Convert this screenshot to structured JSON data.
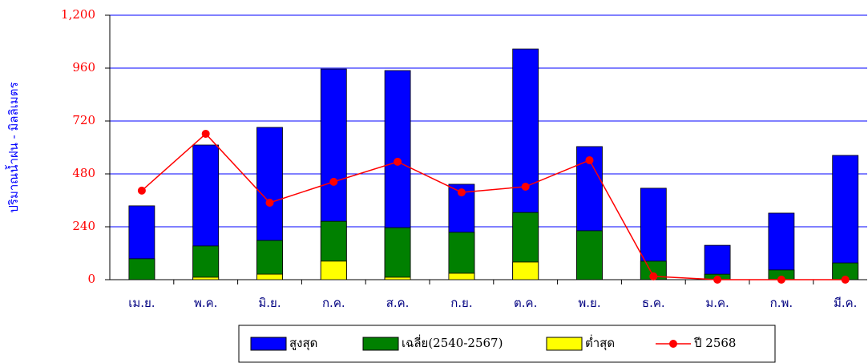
{
  "chart_data": {
    "type": "bar",
    "ylabel": "ปริมาณน้ำฝน - มิลลิเมตร",
    "categories": [
      "เม.ย.",
      "พ.ค.",
      "มิ.ย.",
      "ก.ค.",
      "ส.ค.",
      "ก.ย.",
      "ต.ค.",
      "พ.ย.",
      "ธ.ค.",
      "ม.ค.",
      "ก.พ.",
      "มี.ค."
    ],
    "series": [
      {
        "name": "สูงสุด",
        "color": "#0000ff",
        "type": "bar",
        "values": [
          335,
          611,
          691,
          956,
          949,
          433,
          1047,
          604,
          415,
          156,
          302,
          564
        ]
      },
      {
        "name": "เฉลี่ย(2540-2567)",
        "color": "#008000",
        "type": "bar",
        "values": [
          95,
          153,
          178,
          265,
          236,
          215,
          305,
          222,
          84,
          25,
          44,
          76
        ]
      },
      {
        "name": "ต่ำสุด",
        "color": "#ffff00",
        "type": "bar",
        "values": [
          0,
          11,
          25,
          84,
          11,
          29,
          80,
          0,
          0,
          0,
          0,
          0
        ]
      },
      {
        "name": "ปี 2568",
        "color": "#ff0000",
        "type": "line",
        "values": [
          404,
          662,
          349,
          444,
          535,
          396,
          422,
          542,
          15,
          0,
          0,
          0
        ]
      }
    ],
    "ylim": [
      0,
      1200
    ],
    "yticks": [
      0,
      240,
      480,
      720,
      960,
      {
        "value": 1200,
        "label": "1,200"
      }
    ],
    "grid": true
  }
}
